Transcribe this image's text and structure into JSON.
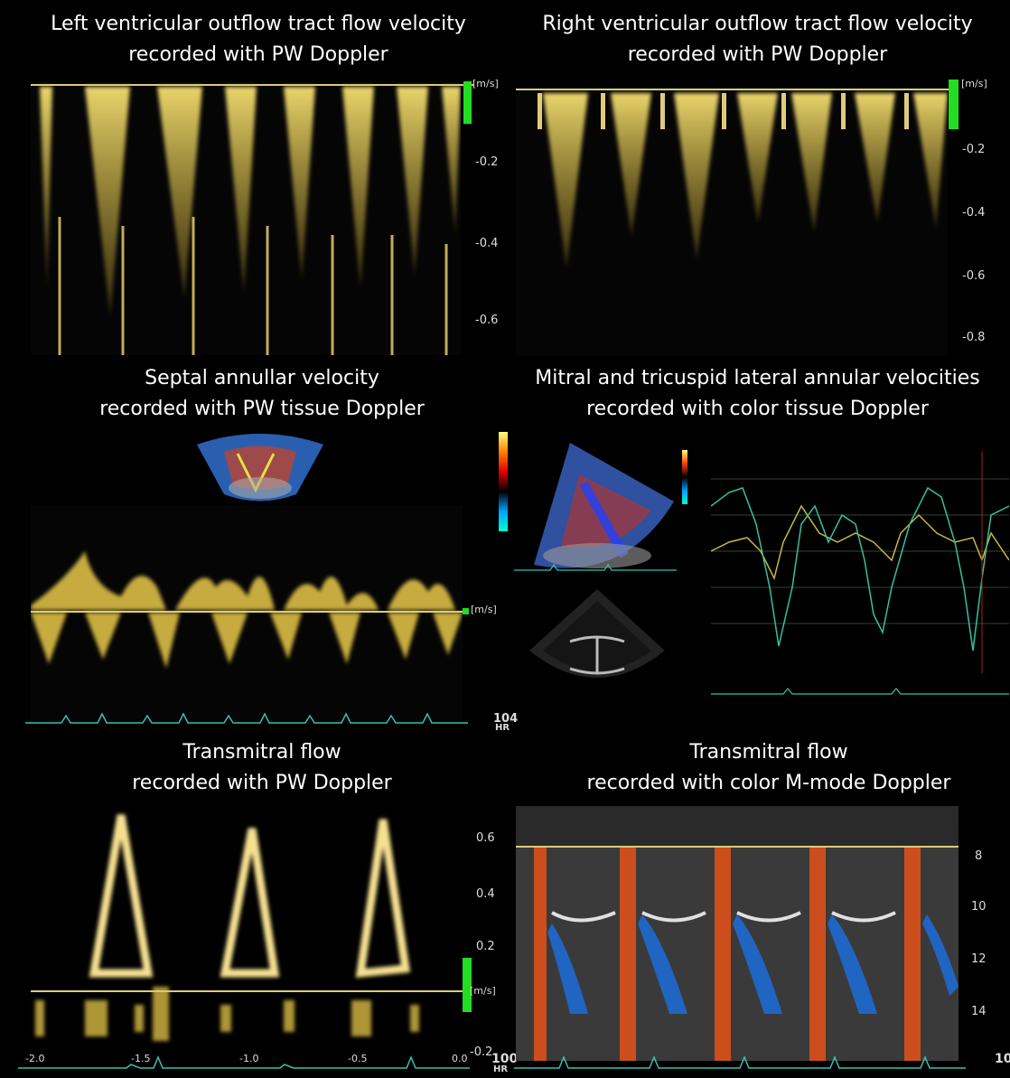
{
  "panels": {
    "lvot": {
      "title_line1": "Left ventricular outflow tract flow velocity",
      "title_line2": "recorded  with PW Doppler",
      "unit": "[m/s]",
      "ticks": [
        "-0.2",
        "-0.4",
        "-0.6"
      ]
    },
    "rvot": {
      "title_line1": "Right ventricular outflow tract flow velocity",
      "title_line2": "recorded  with PW Doppler",
      "unit": "[m/s]",
      "ticks": [
        "-0.2",
        "-0.4",
        "-0.6",
        "-0.8"
      ]
    },
    "septal": {
      "title_line1": "Septal annullar  velocity",
      "title_line2": "recorded with PW tissue  Doppler",
      "unit": "[m/s]",
      "hr_value": "104",
      "hr_label": "HR"
    },
    "mitral_tricuspid": {
      "title_line1": "Mitral and tricuspid lateral annular velocities",
      "title_line2": "recorded with color tissue  Doppler"
    },
    "transmitral_pw": {
      "title_line1": "Transmitral flow",
      "title_line2": "recorded with PW Doppler",
      "unit": "[m/s]",
      "ticks": [
        "0.6",
        "0.4",
        "0.2",
        "-0.2"
      ],
      "time_ticks": [
        "-2.0",
        "-1.5",
        "-1.0",
        "-0.5",
        "0.0"
      ],
      "hr_value": "100",
      "hr_label": "HR"
    },
    "transmitral_mmode": {
      "title_line1": "Transmitral flow",
      "title_line2": "recorded with color M-mode Doppler",
      "ticks": [
        "8",
        "10",
        "12",
        "14"
      ],
      "hr_value": "10"
    }
  },
  "colors": {
    "doppler_yellow": "#e8c84a",
    "baseline": "#d8cc7a",
    "ecg": "#38c0b0",
    "scale_green": "#22dd22",
    "background": "#000000"
  }
}
